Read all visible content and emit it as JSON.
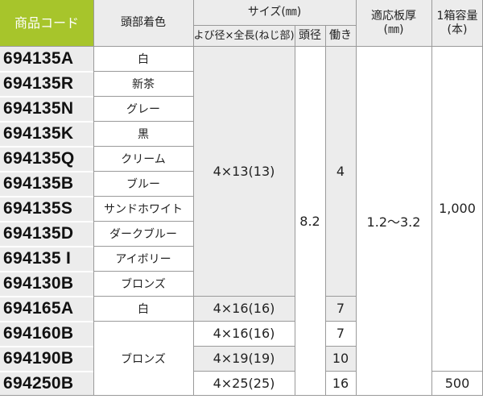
{
  "header": {
    "product_code": "商品コード",
    "head_color": "頭部着色",
    "size_group": "サイズ(㎜)",
    "diameter_length_line1": "よび径×全長",
    "diameter_length_line2": "(ねじ部)",
    "head_diameter": "頭径",
    "working": "働き",
    "thickness_line1": "適応板厚",
    "thickness_line2": "(㎜)",
    "box_line1": "1箱容量",
    "box_line2": "(本)"
  },
  "rows": [
    {
      "code": "694135A",
      "color": "白"
    },
    {
      "code": "694135R",
      "color": "新茶"
    },
    {
      "code": "694135N",
      "color": "グレー"
    },
    {
      "code": "694135K",
      "color": "黒"
    },
    {
      "code": "694135Q",
      "color": "クリーム"
    },
    {
      "code": "694135B",
      "color": "ブルー"
    },
    {
      "code": "694135S",
      "color": "サンドホワイト"
    },
    {
      "code": "694135D",
      "color": "ダークブルー"
    },
    {
      "code": "694135 I",
      "color": "アイボリー"
    },
    {
      "code": "694130B",
      "color": "ブロンズ"
    },
    {
      "code": "694165A",
      "color": "白"
    },
    {
      "code": "694160B"
    },
    {
      "code": "694190B"
    },
    {
      "code": "694250B"
    }
  ],
  "spans": {
    "bronze_color": "ブロンズ",
    "size_group_1": "4×13(13)",
    "size_165A": "4×16(16)",
    "size_160B": "4×16(16)",
    "size_190B": "4×19(19)",
    "size_250B": "4×25(25)",
    "head_dia": "8.2",
    "work_group_1": "4",
    "work_165A": "7",
    "work_160B": "7",
    "work_190B": "10",
    "work_250B": "16",
    "thickness": "1.2〜3.2",
    "box_main": "1,000",
    "box_250B": "500"
  },
  "colors": {
    "header_code_bg": "#a7c52b",
    "cell_gray": "#ececec",
    "grid_line": "#9a9a9a"
  }
}
